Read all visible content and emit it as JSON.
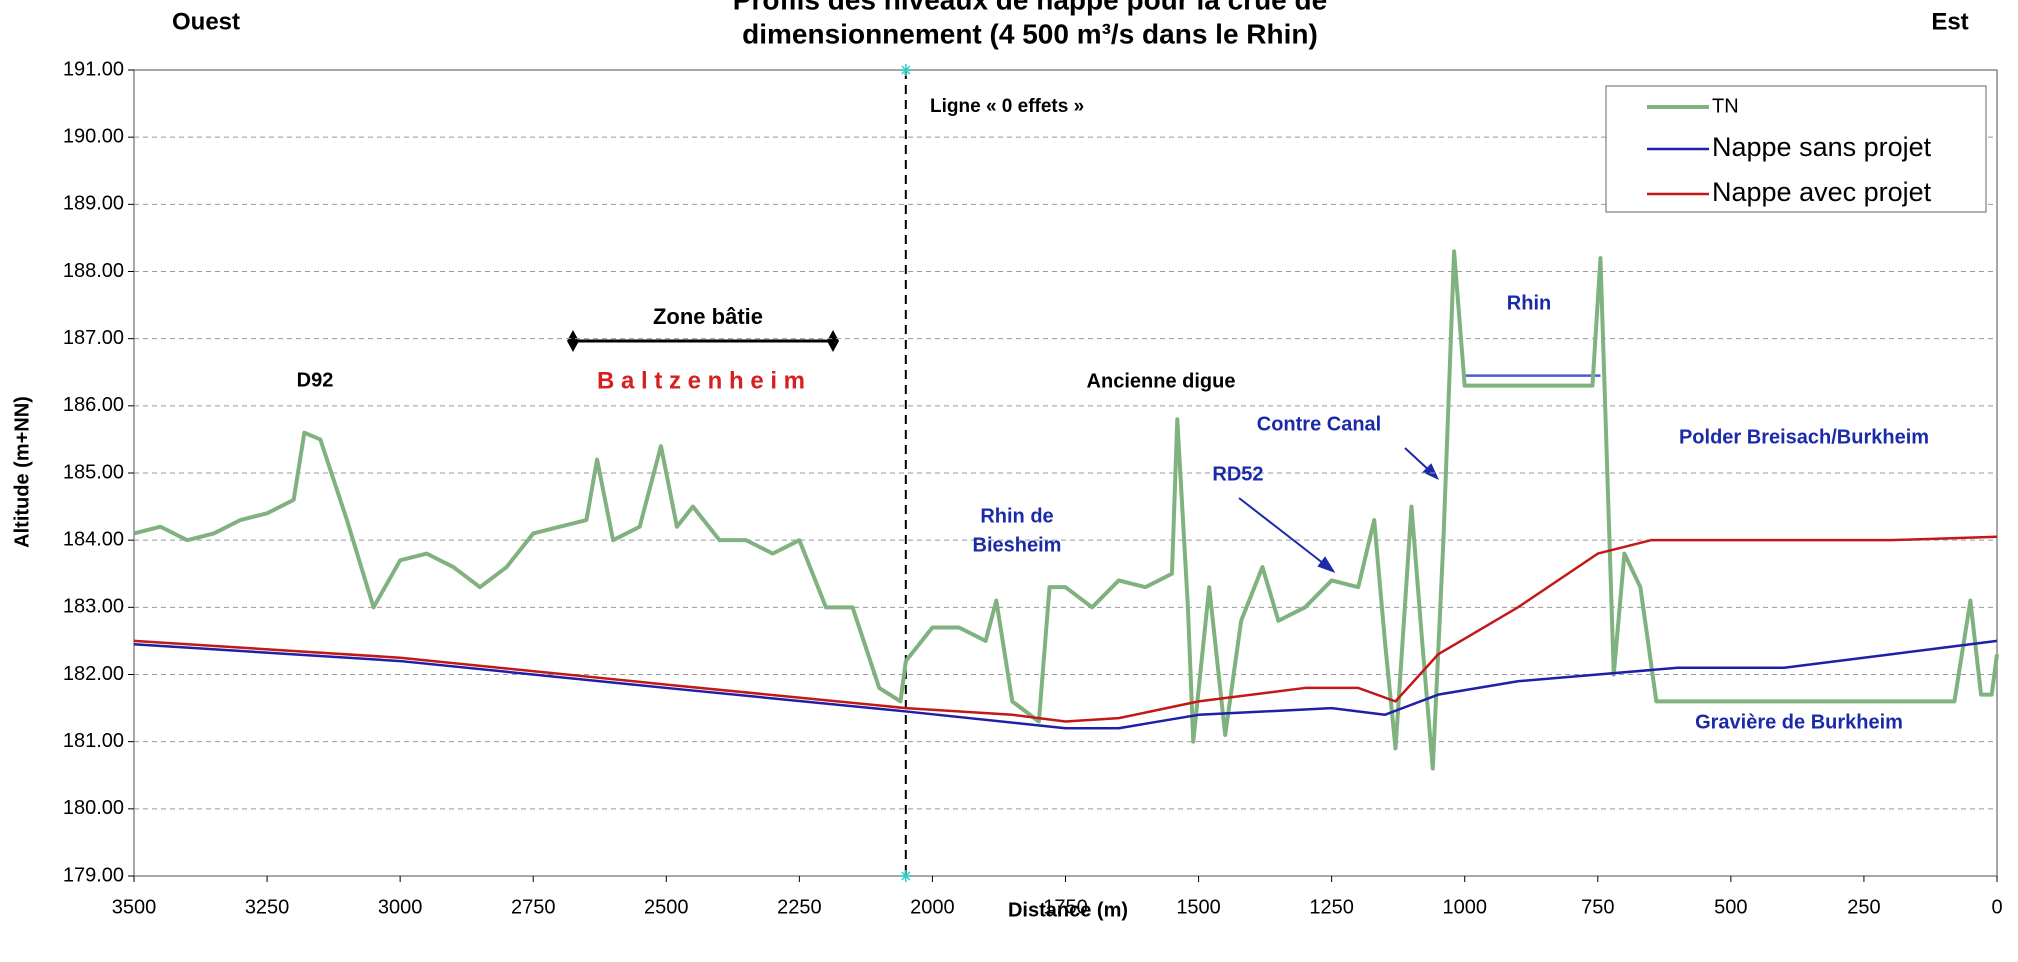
{
  "chart_data": {
    "type": "line",
    "title": "Profils des niveaux de nappe pour la crue de",
    "subtitle": "dimensionnement (4 500 m³/s dans le Rhin)",
    "x_label": "Distance (m)",
    "y_label": "Altitude (m+NN)",
    "xlim": [
      3500,
      0
    ],
    "xticks": [
      3500,
      3250,
      3000,
      2750,
      2500,
      2250,
      2000,
      1750,
      1500,
      1250,
      1000,
      750,
      500,
      250,
      0
    ],
    "ylim": [
      179,
      191
    ],
    "yticks": [
      {
        "value": 179,
        "label": "179.00"
      },
      {
        "value": 180,
        "label": "180.00"
      },
      {
        "value": 181,
        "label": "181.00"
      },
      {
        "value": 182,
        "label": "182.00"
      },
      {
        "value": 183,
        "label": "183.00"
      },
      {
        "value": 184,
        "label": "184.00"
      },
      {
        "value": 185,
        "label": "185.00"
      },
      {
        "value": 186,
        "label": "186.00"
      },
      {
        "value": 187,
        "label": "187.00"
      },
      {
        "value": 188,
        "label": "188.00"
      },
      {
        "value": 189,
        "label": "189.00"
      },
      {
        "value": 190,
        "label": "190.00"
      },
      {
        "value": 191,
        "label": "191.00"
      }
    ],
    "grid": true,
    "legend": "upper right",
    "series": [
      {
        "name": "TN",
        "color": "#7fb27f",
        "x": [
          3500,
          3450,
          3400,
          3350,
          3300,
          3250,
          3200,
          3180,
          3150,
          3100,
          3050,
          3000,
          2950,
          2900,
          2850,
          2800,
          2750,
          2700,
          2650,
          2630,
          2600,
          2550,
          2510,
          2480,
          2450,
          2400,
          2350,
          2300,
          2250,
          2200,
          2150,
          2100,
          2060,
          2050,
          2000,
          1950,
          1900,
          1880,
          1850,
          1800,
          1780,
          1750,
          1700,
          1650,
          1600,
          1550,
          1540,
          1520,
          1510,
          1480,
          1450,
          1420,
          1380,
          1350,
          1300,
          1250,
          1200,
          1170,
          1150,
          1130,
          1100,
          1080,
          1060,
          1040,
          1020,
          1000,
          900,
          800,
          760,
          745,
          720,
          700,
          670,
          640,
          600,
          400,
          200,
          80,
          50,
          30,
          10,
          0
        ],
        "values": [
          184.1,
          184.2,
          184.0,
          184.1,
          184.3,
          184.4,
          184.6,
          185.6,
          185.5,
          184.3,
          183.0,
          183.7,
          183.8,
          183.6,
          183.3,
          183.6,
          184.1,
          184.2,
          184.3,
          185.2,
          184.0,
          184.2,
          185.4,
          184.2,
          184.5,
          184.0,
          184.0,
          183.8,
          184.0,
          183.0,
          183.0,
          181.8,
          181.6,
          182.2,
          182.7,
          182.7,
          182.5,
          183.1,
          181.6,
          181.3,
          183.3,
          183.3,
          183.0,
          183.4,
          183.3,
          183.5,
          185.8,
          183.0,
          181.0,
          183.3,
          181.1,
          182.8,
          183.6,
          182.8,
          183.0,
          183.4,
          183.3,
          184.3,
          182.5,
          180.9,
          184.5,
          182.5,
          180.6,
          184.0,
          188.3,
          186.3,
          186.3,
          186.3,
          186.3,
          188.2,
          182.0,
          183.8,
          183.3,
          181.6,
          181.6,
          181.6,
          181.6,
          181.6,
          183.1,
          181.7,
          181.7,
          182.3
        ]
      },
      {
        "name": "Nappe sans projet",
        "color": "#1f1fa8",
        "x": [
          3500,
          3000,
          2500,
          2050,
          1750,
          1650,
          1500,
          1250,
          1150,
          1050,
          900,
          750,
          600,
          400,
          200,
          100,
          0
        ],
        "values": [
          182.45,
          182.2,
          181.8,
          181.45,
          181.2,
          181.2,
          181.4,
          181.5,
          181.4,
          181.7,
          181.9,
          182.0,
          182.1,
          182.1,
          182.3,
          182.4,
          182.5
        ]
      },
      {
        "name": "Nappe avec projet",
        "color": "#c41818",
        "x": [
          3500,
          3000,
          2500,
          2050,
          1850,
          1750,
          1650,
          1500,
          1300,
          1200,
          1130,
          1050,
          900,
          750,
          650,
          400,
          200,
          0
        ],
        "values": [
          182.5,
          182.25,
          181.85,
          181.5,
          181.4,
          181.3,
          181.35,
          181.6,
          181.8,
          181.8,
          181.6,
          182.3,
          183.0,
          183.8,
          184.0,
          184.0,
          184.0,
          184.05
        ]
      }
    ],
    "reference_lines": [
      {
        "x": [
          1000,
          745
        ],
        "y": 186.45,
        "color": "#4a5bd6"
      }
    ],
    "vline": 2050,
    "annotations": [
      "Ouest",
      "Est",
      "D92",
      "Zone bâtie",
      "B a l t z e n h e i m",
      "Ligne « 0 effets »",
      "Ancienne digue",
      "Rhin de",
      "Biesheim",
      "Contre Canal",
      "RD52",
      "Rhin",
      "Polder Breisach/Burkheim",
      "Gravière de Burkheim"
    ]
  }
}
